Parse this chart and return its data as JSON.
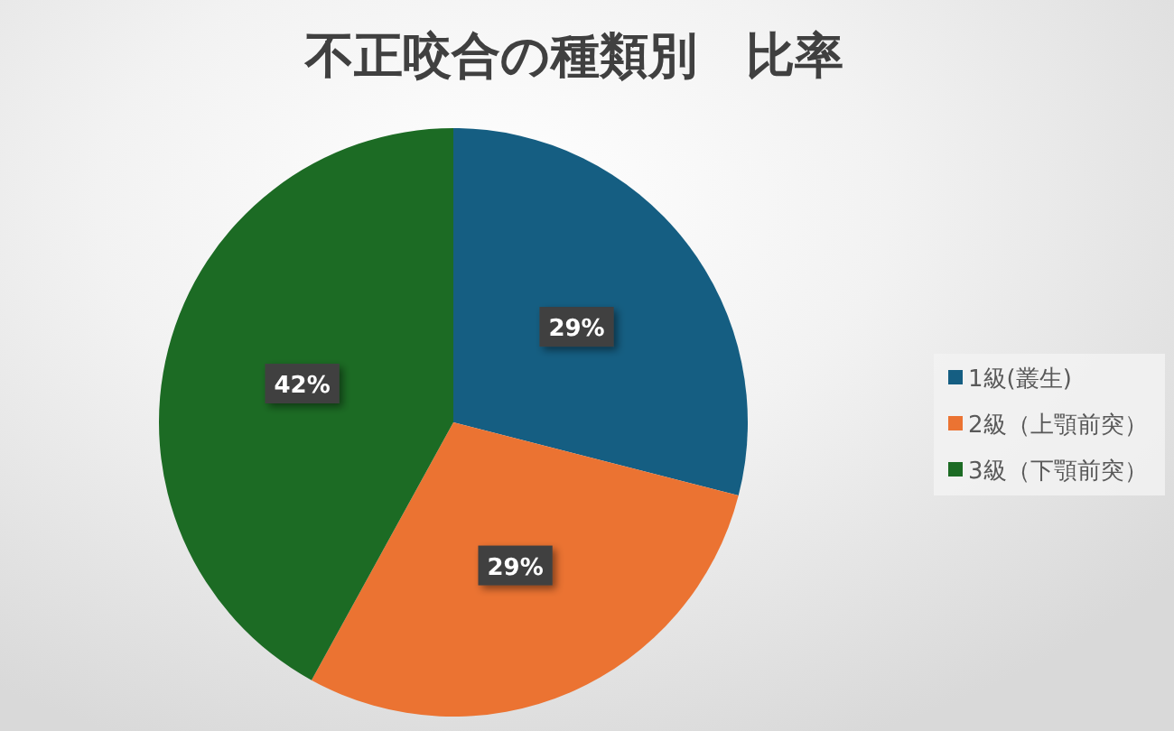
{
  "chart_data": {
    "type": "pie",
    "title": "不正咬合の種類別　比率",
    "categories": [
      "1級(叢生)",
      "2級（上顎前突）",
      "3級（下顎前突）"
    ],
    "values": [
      29,
      29,
      42
    ],
    "colors": [
      "#155e82",
      "#eb7332",
      "#1c6b24"
    ],
    "value_labels": [
      "29%",
      "29%",
      "42%"
    ],
    "legend": "right"
  }
}
